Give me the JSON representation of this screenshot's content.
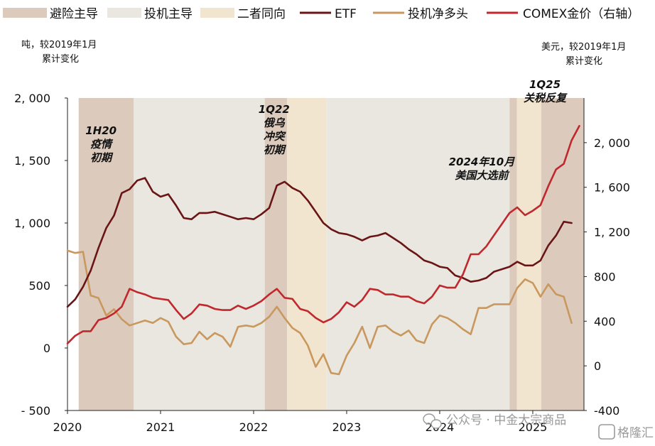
{
  "legend": {
    "items": [
      {
        "label": "避险主导",
        "kind": "band",
        "color": "#dccbbd"
      },
      {
        "label": "投机主导",
        "kind": "band",
        "color": "#e9e7df"
      },
      {
        "label": "二者同向",
        "kind": "band",
        "color": "#f1e5d0"
      },
      {
        "label": "ETF",
        "kind": "line",
        "color": "#6a1515"
      },
      {
        "label": "投机净多头",
        "kind": "line",
        "color": "#c8985e"
      },
      {
        "label": "COMEX金价（右轴）",
        "kind": "line",
        "color": "#c0282d"
      }
    ]
  },
  "units": {
    "left": [
      "吨，较2019年1月",
      "累计变化"
    ],
    "right": [
      "美元，较2019年1月",
      "累计变化"
    ]
  },
  "watermark": {
    "text": "公众号 · 中金大宗商品",
    "logo": "格隆汇",
    "icon": "wechat-icon"
  },
  "chart_data": {
    "type": "line",
    "x_unit": "year",
    "xlim": [
      2020.0,
      2025.55
    ],
    "xticks": [
      "2020",
      "2021",
      "2022",
      "2023",
      "2024",
      "2025"
    ],
    "y_left": {
      "ylim": [
        -500,
        2000
      ],
      "ticks": [
        "- 500",
        "0",
        "500",
        "1, 000",
        "1, 500",
        "2, 000"
      ]
    },
    "y_right": {
      "ylim": [
        -400,
        2400
      ],
      "ticks": [
        "-400",
        "0",
        "400",
        "800",
        "1, 200",
        "1, 600",
        "2, 000"
      ]
    },
    "bands": [
      {
        "type": "避险主导",
        "start": 2020.12,
        "end": 2020.71
      },
      {
        "type": "投机主导",
        "start": 2020.71,
        "end": 2022.12
      },
      {
        "type": "避险主导",
        "start": 2022.12,
        "end": 2022.36
      },
      {
        "type": "二者同向",
        "start": 2022.36,
        "end": 2022.78
      },
      {
        "type": "投机主导",
        "start": 2022.78,
        "end": 2024.75
      },
      {
        "type": "避险主导",
        "start": 2024.75,
        "end": 2024.83
      },
      {
        "type": "二者同向",
        "start": 2024.83,
        "end": 2025.09
      },
      {
        "type": "避险主导",
        "start": 2025.09,
        "end": 2025.55
      }
    ],
    "annotations": [
      {
        "lines": [
          "1H20",
          "疫情",
          "初期"
        ],
        "x": 2020.36,
        "y_left": 1710
      },
      {
        "lines": [
          "1Q22",
          "俄乌",
          "冲突",
          "初期"
        ],
        "x": 2022.22,
        "y_left": 1880
      },
      {
        "lines": [
          "2024年10月",
          "美国大选前"
        ],
        "x": 2024.45,
        "y_left": 1460
      },
      {
        "lines": [
          "1Q25",
          "关税反复"
        ],
        "x": 2025.13,
        "y_left": 2080
      }
    ],
    "series": [
      {
        "name": "ETF",
        "axis": "left",
        "x": [
          2020.0,
          2020.083,
          2020.167,
          2020.25,
          2020.333,
          2020.417,
          2020.5,
          2020.583,
          2020.667,
          2020.75,
          2020.833,
          2020.917,
          2021.0,
          2021.083,
          2021.167,
          2021.25,
          2021.333,
          2021.417,
          2021.5,
          2021.583,
          2021.667,
          2021.75,
          2021.833,
          2021.917,
          2022.0,
          2022.083,
          2022.167,
          2022.25,
          2022.333,
          2022.417,
          2022.5,
          2022.583,
          2022.667,
          2022.75,
          2022.833,
          2022.917,
          2023.0,
          2023.083,
          2023.167,
          2023.25,
          2023.333,
          2023.417,
          2023.5,
          2023.583,
          2023.667,
          2023.75,
          2023.833,
          2023.917,
          2024.0,
          2024.083,
          2024.167,
          2024.25,
          2024.333,
          2024.417,
          2024.5,
          2024.583,
          2024.667,
          2024.75,
          2024.833,
          2024.917,
          2025.0,
          2025.083,
          2025.167,
          2025.25,
          2025.333,
          2025.417
        ],
        "values": [
          330,
          390,
          490,
          620,
          800,
          960,
          1060,
          1240,
          1270,
          1340,
          1360,
          1250,
          1210,
          1230,
          1140,
          1040,
          1030,
          1080,
          1080,
          1090,
          1070,
          1050,
          1030,
          1040,
          1030,
          1070,
          1120,
          1300,
          1330,
          1280,
          1250,
          1180,
          1090,
          1000,
          950,
          920,
          910,
          890,
          860,
          890,
          900,
          920,
          880,
          840,
          790,
          750,
          700,
          680,
          650,
          640,
          580,
          560,
          530,
          540,
          560,
          610,
          630,
          650,
          690,
          660,
          660,
          700,
          820,
          900,
          1010,
          1000
        ]
      },
      {
        "name": "投机净多头",
        "axis": "left",
        "x": [
          2020.0,
          2020.083,
          2020.167,
          2020.25,
          2020.333,
          2020.417,
          2020.5,
          2020.583,
          2020.667,
          2020.75,
          2020.833,
          2020.917,
          2021.0,
          2021.083,
          2021.167,
          2021.25,
          2021.333,
          2021.417,
          2021.5,
          2021.583,
          2021.667,
          2021.75,
          2021.833,
          2021.917,
          2022.0,
          2022.083,
          2022.167,
          2022.25,
          2022.333,
          2022.417,
          2022.5,
          2022.583,
          2022.667,
          2022.75,
          2022.833,
          2022.917,
          2023.0,
          2023.083,
          2023.167,
          2023.25,
          2023.333,
          2023.417,
          2023.5,
          2023.583,
          2023.667,
          2023.75,
          2023.833,
          2023.917,
          2024.0,
          2024.083,
          2024.167,
          2024.25,
          2024.333,
          2024.417,
          2024.5,
          2024.583,
          2024.667,
          2024.75,
          2024.833,
          2024.917,
          2025.0,
          2025.083,
          2025.167,
          2025.25,
          2025.333,
          2025.417
        ],
        "values": [
          780,
          760,
          770,
          420,
          400,
          260,
          310,
          230,
          180,
          200,
          220,
          200,
          240,
          210,
          90,
          30,
          40,
          130,
          70,
          120,
          90,
          10,
          170,
          180,
          170,
          200,
          250,
          330,
          240,
          160,
          120,
          20,
          -150,
          -50,
          -200,
          -210,
          -60,
          40,
          170,
          0,
          170,
          180,
          130,
          100,
          140,
          60,
          40,
          190,
          260,
          240,
          200,
          150,
          110,
          320,
          320,
          350,
          350,
          350,
          480,
          550,
          520,
          410,
          510,
          430,
          410,
          200
        ]
      },
      {
        "name": "COMEX金价（右轴）",
        "axis": "right",
        "x": [
          2020.0,
          2020.083,
          2020.167,
          2020.25,
          2020.333,
          2020.417,
          2020.5,
          2020.583,
          2020.667,
          2020.75,
          2020.833,
          2020.917,
          2021.0,
          2021.083,
          2021.167,
          2021.25,
          2021.333,
          2021.417,
          2021.5,
          2021.583,
          2021.667,
          2021.75,
          2021.833,
          2021.917,
          2022.0,
          2022.083,
          2022.167,
          2022.25,
          2022.333,
          2022.417,
          2022.5,
          2022.583,
          2022.667,
          2022.75,
          2022.833,
          2022.917,
          2023.0,
          2023.083,
          2023.167,
          2023.25,
          2023.333,
          2023.417,
          2023.5,
          2023.583,
          2023.667,
          2023.75,
          2023.833,
          2023.917,
          2024.0,
          2024.083,
          2024.167,
          2024.25,
          2024.333,
          2024.417,
          2024.5,
          2024.583,
          2024.667,
          2024.75,
          2024.833,
          2024.917,
          2025.0,
          2025.083,
          2025.167,
          2025.25,
          2025.333,
          2025.417,
          2025.5
        ],
        "values": [
          200,
          270,
          310,
          310,
          410,
          430,
          470,
          530,
          690,
          660,
          640,
          610,
          600,
          590,
          500,
          420,
          470,
          550,
          540,
          510,
          500,
          500,
          540,
          510,
          540,
          580,
          640,
          690,
          610,
          600,
          510,
          490,
          430,
          390,
          420,
          480,
          570,
          530,
          590,
          690,
          680,
          640,
          640,
          620,
          620,
          580,
          560,
          620,
          720,
          700,
          700,
          820,
          1000,
          1000,
          1070,
          1170,
          1270,
          1370,
          1420,
          1350,
          1390,
          1440,
          1610,
          1760,
          1810,
          2020,
          2150
        ]
      }
    ]
  }
}
